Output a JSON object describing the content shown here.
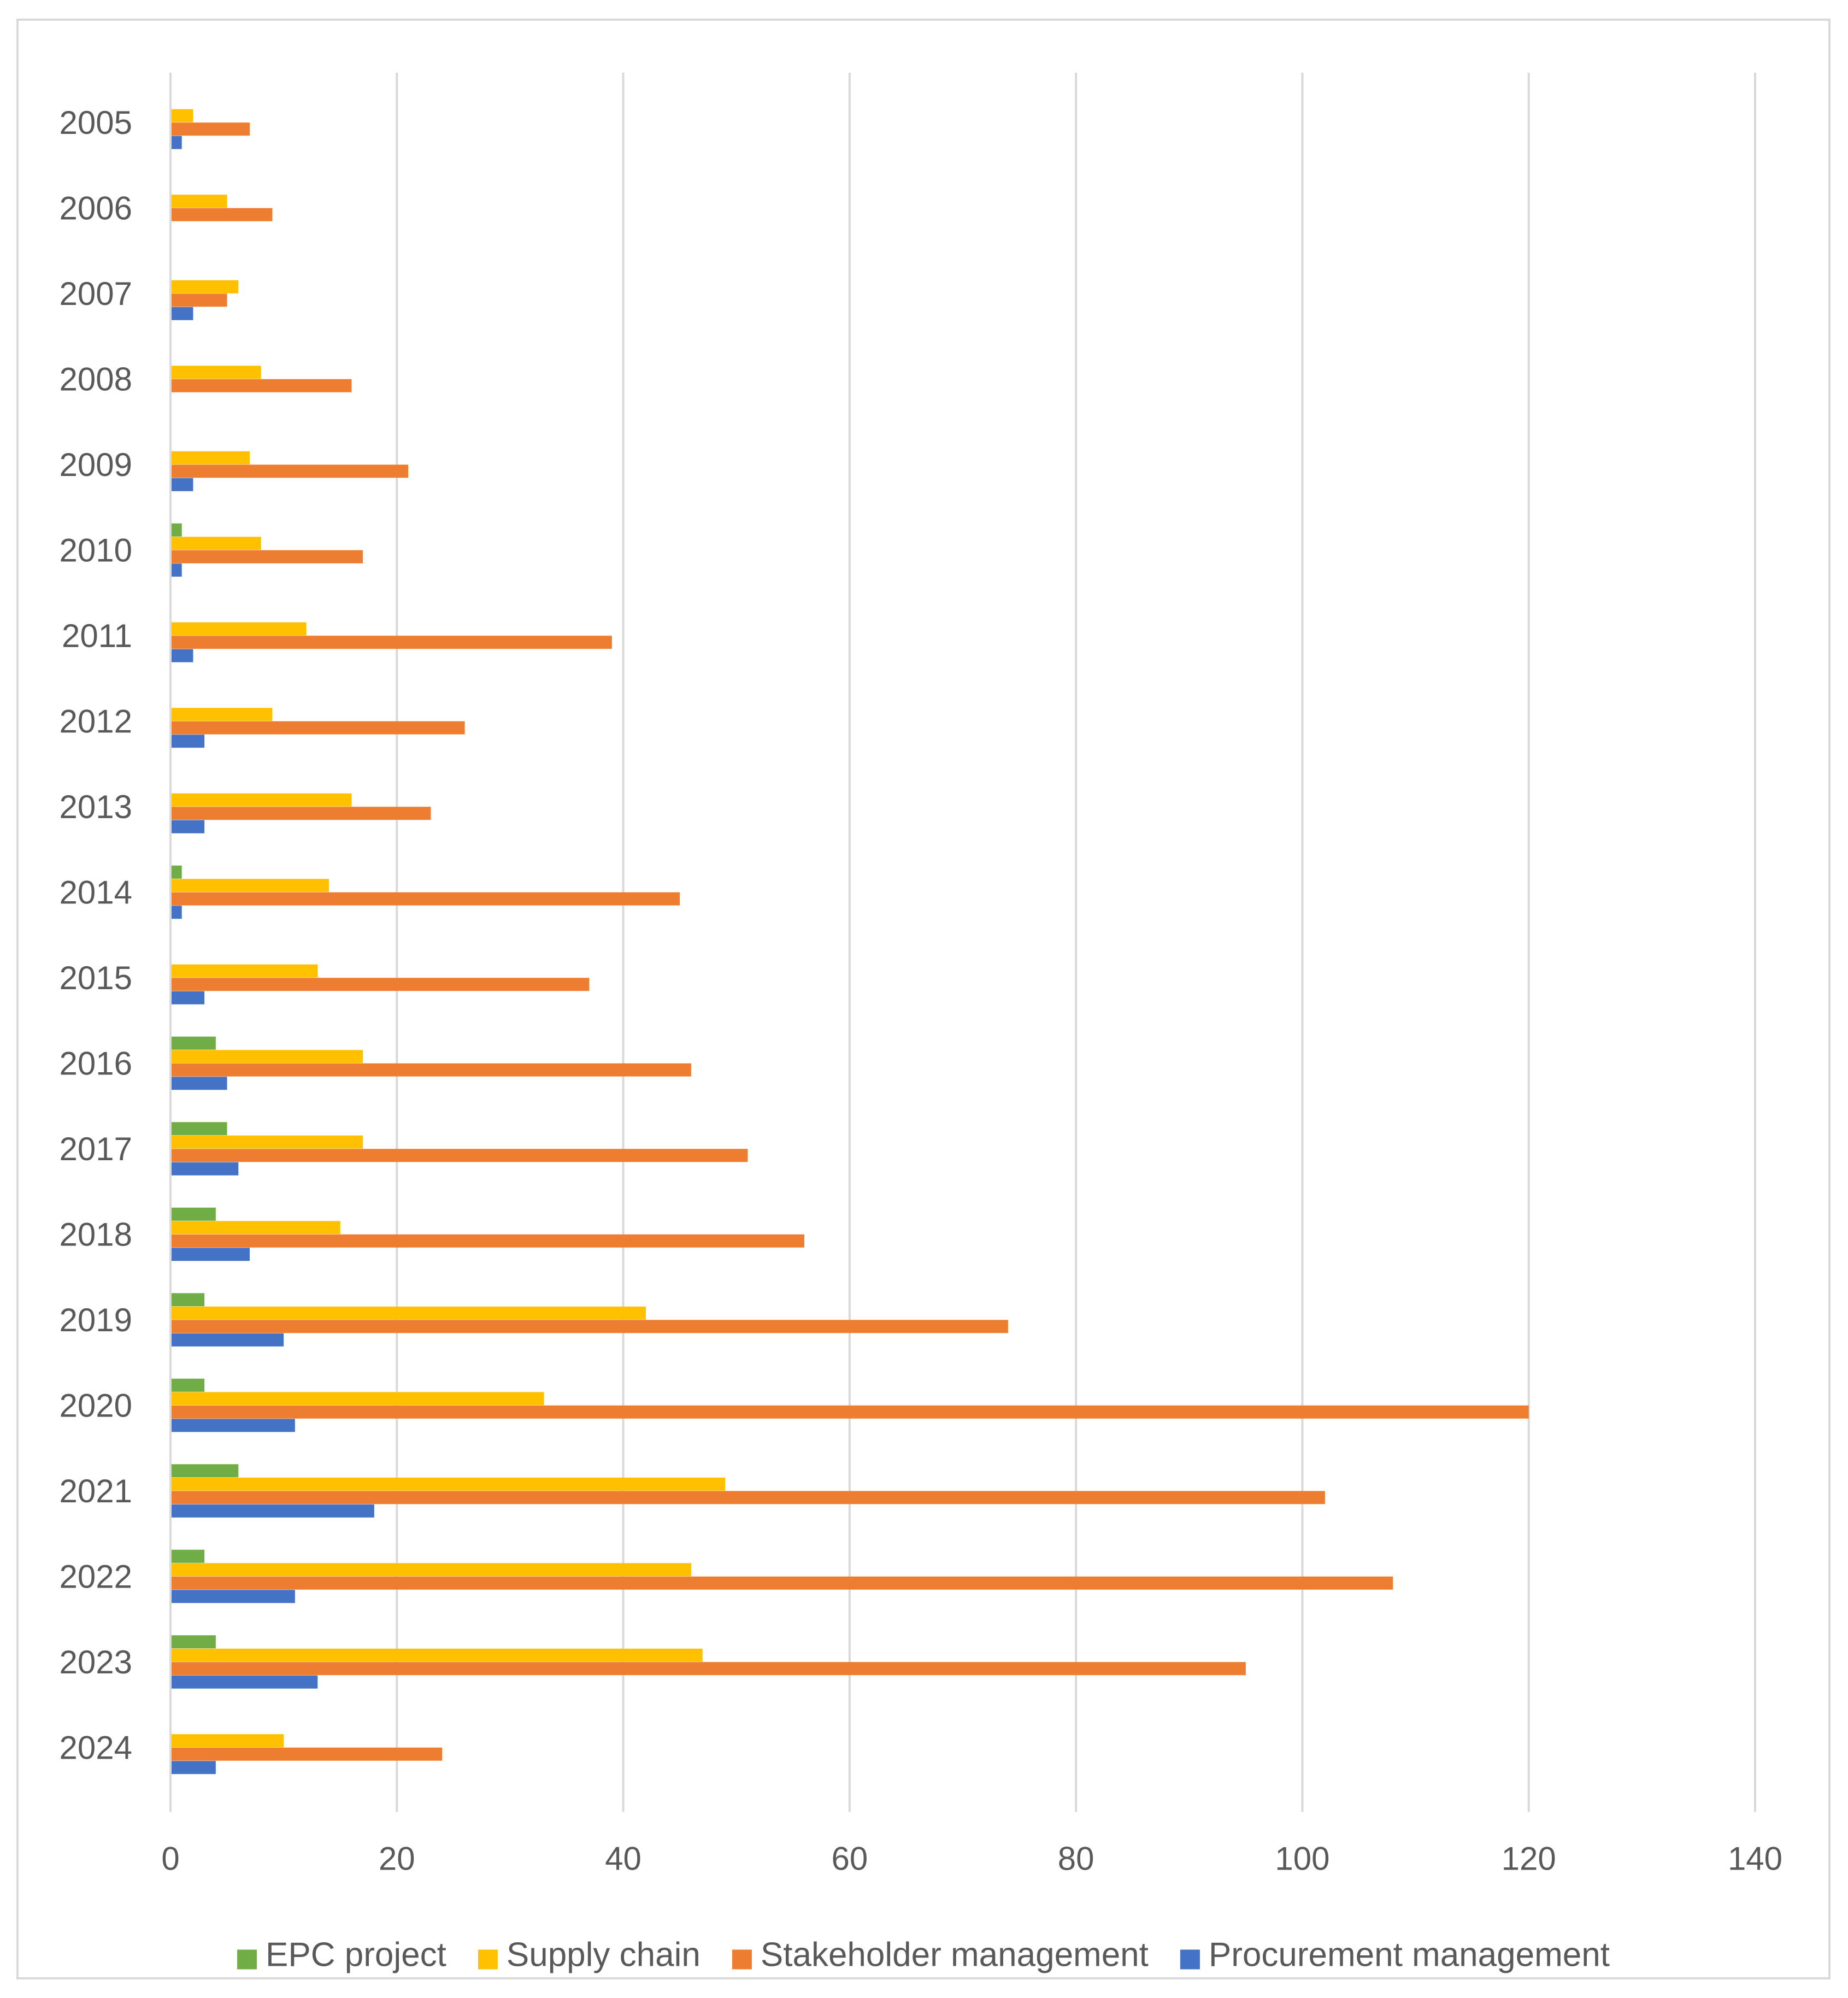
{
  "chart_data": {
    "type": "bar",
    "orientation": "horizontal",
    "title": "",
    "xlabel": "",
    "ylabel": "",
    "xlim": [
      0,
      140
    ],
    "xticks": [
      0,
      20,
      40,
      60,
      80,
      100,
      120,
      140
    ],
    "grid": "vertical",
    "legend_position": "bottom",
    "categories": [
      "2005",
      "2006",
      "2007",
      "2008",
      "2009",
      "2010",
      "2011",
      "2012",
      "2013",
      "2014",
      "2015",
      "2016",
      "2017",
      "2018",
      "2019",
      "2020",
      "2021",
      "2022",
      "2023",
      "2024"
    ],
    "series": [
      {
        "name": "EPC project",
        "color": "#70ad47",
        "values": [
          0,
          0,
          0,
          0,
          0,
          1,
          0,
          0,
          0,
          1,
          0,
          4,
          5,
          4,
          3,
          3,
          6,
          3,
          4,
          0
        ]
      },
      {
        "name": "Supply chain",
        "color": "#ffc000",
        "values": [
          2,
          5,
          6,
          8,
          7,
          8,
          12,
          9,
          16,
          14,
          13,
          17,
          17,
          15,
          42,
          33,
          49,
          46,
          47,
          10
        ]
      },
      {
        "name": "Stakeholder management",
        "color": "#ed7d31",
        "values": [
          7,
          9,
          5,
          16,
          21,
          17,
          39,
          26,
          23,
          45,
          37,
          46,
          51,
          56,
          74,
          120,
          102,
          108,
          95,
          24
        ]
      },
      {
        "name": "Procurement management",
        "color": "#4472c4",
        "values": [
          1,
          0,
          2,
          0,
          2,
          1,
          2,
          3,
          3,
          1,
          3,
          5,
          6,
          7,
          10,
          11,
          18,
          11,
          13,
          4
        ]
      }
    ]
  }
}
